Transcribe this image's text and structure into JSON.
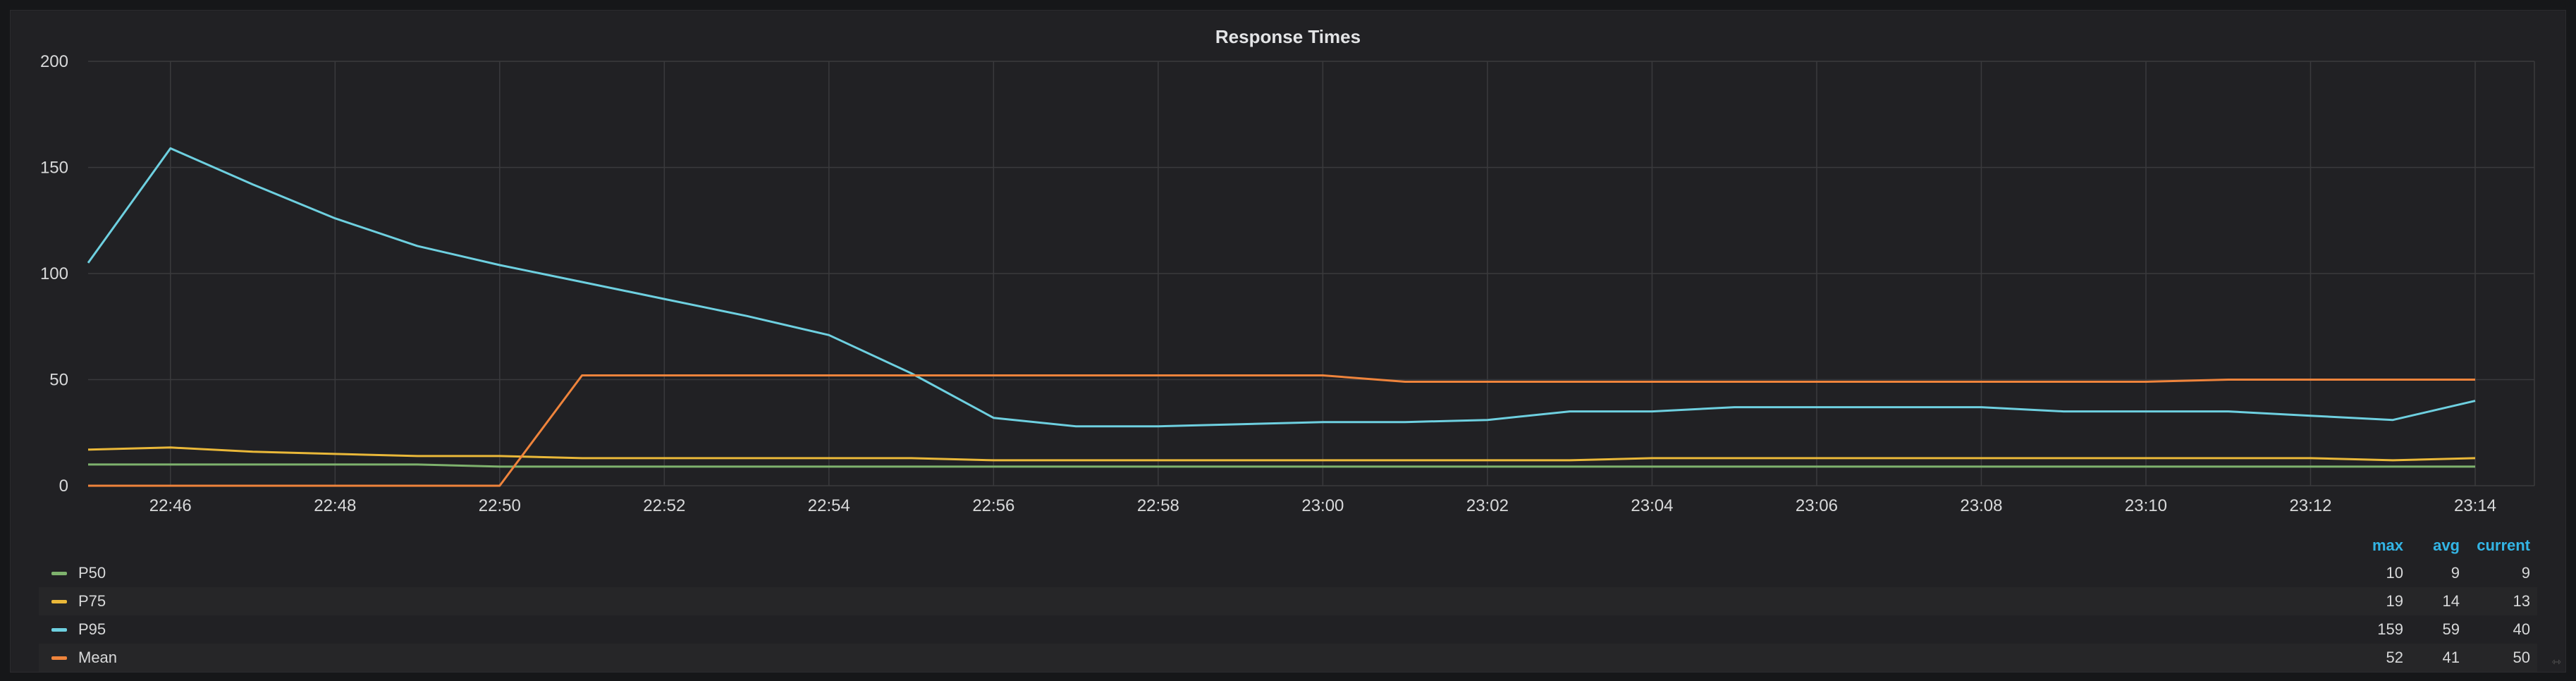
{
  "panel": {
    "title": "Response Times"
  },
  "chart_data": {
    "type": "line",
    "title": "Response Times",
    "xlabel": "",
    "ylabel": "",
    "ylim": [
      0,
      200
    ],
    "yticks": [
      0,
      50,
      100,
      150,
      200
    ],
    "x": [
      "22:45",
      "22:46",
      "22:47",
      "22:48",
      "22:49",
      "22:50",
      "22:51",
      "22:52",
      "22:53",
      "22:54",
      "22:55",
      "22:56",
      "22:57",
      "22:58",
      "22:59",
      "23:00",
      "23:01",
      "23:02",
      "23:03",
      "23:04",
      "23:05",
      "23:06",
      "23:07",
      "23:08",
      "23:09",
      "23:10",
      "23:11",
      "23:12",
      "23:13",
      "23:14"
    ],
    "xticks": [
      "22:46",
      "22:48",
      "22:50",
      "22:52",
      "22:54",
      "22:56",
      "22:58",
      "23:00",
      "23:02",
      "23:04",
      "23:06",
      "23:08",
      "23:10",
      "23:12",
      "23:14"
    ],
    "grid": true,
    "series": [
      {
        "name": "P50",
        "color": "#7eb26d",
        "values": [
          10,
          10,
          10,
          10,
          10,
          9,
          9,
          9,
          9,
          9,
          9,
          9,
          9,
          9,
          9,
          9,
          9,
          9,
          9,
          9,
          9,
          9,
          9,
          9,
          9,
          9,
          9,
          9,
          9,
          9
        ]
      },
      {
        "name": "P75",
        "color": "#eab839",
        "values": [
          17,
          18,
          16,
          15,
          14,
          14,
          13,
          13,
          13,
          13,
          13,
          12,
          12,
          12,
          12,
          12,
          12,
          12,
          12,
          13,
          13,
          13,
          13,
          13,
          13,
          13,
          13,
          13,
          12,
          13
        ]
      },
      {
        "name": "P95",
        "color": "#6ed0e0",
        "values": [
          105,
          159,
          142,
          126,
          113,
          104,
          96,
          88,
          80,
          71,
          53,
          32,
          28,
          28,
          29,
          30,
          30,
          31,
          35,
          35,
          37,
          37,
          37,
          37,
          35,
          35,
          35,
          33,
          31,
          40
        ]
      },
      {
        "name": "Mean",
        "color": "#ef843c",
        "values": [
          0,
          0,
          0,
          0,
          0,
          0,
          52,
          52,
          52,
          52,
          52,
          52,
          52,
          52,
          52,
          52,
          49,
          49,
          49,
          49,
          49,
          49,
          49,
          49,
          49,
          49,
          50,
          50,
          50,
          50
        ]
      }
    ]
  },
  "legend": {
    "headers": {
      "max": "max",
      "avg": "avg",
      "current": "current"
    },
    "rows": [
      {
        "name": "P50",
        "color": "#7eb26d",
        "max": "10",
        "avg": "9",
        "current": "9"
      },
      {
        "name": "P75",
        "color": "#eab839",
        "max": "19",
        "avg": "14",
        "current": "13"
      },
      {
        "name": "P95",
        "color": "#6ed0e0",
        "max": "159",
        "avg": "59",
        "current": "40"
      },
      {
        "name": "Mean",
        "color": "#ef843c",
        "max": "52",
        "avg": "41",
        "current": "50"
      }
    ]
  }
}
